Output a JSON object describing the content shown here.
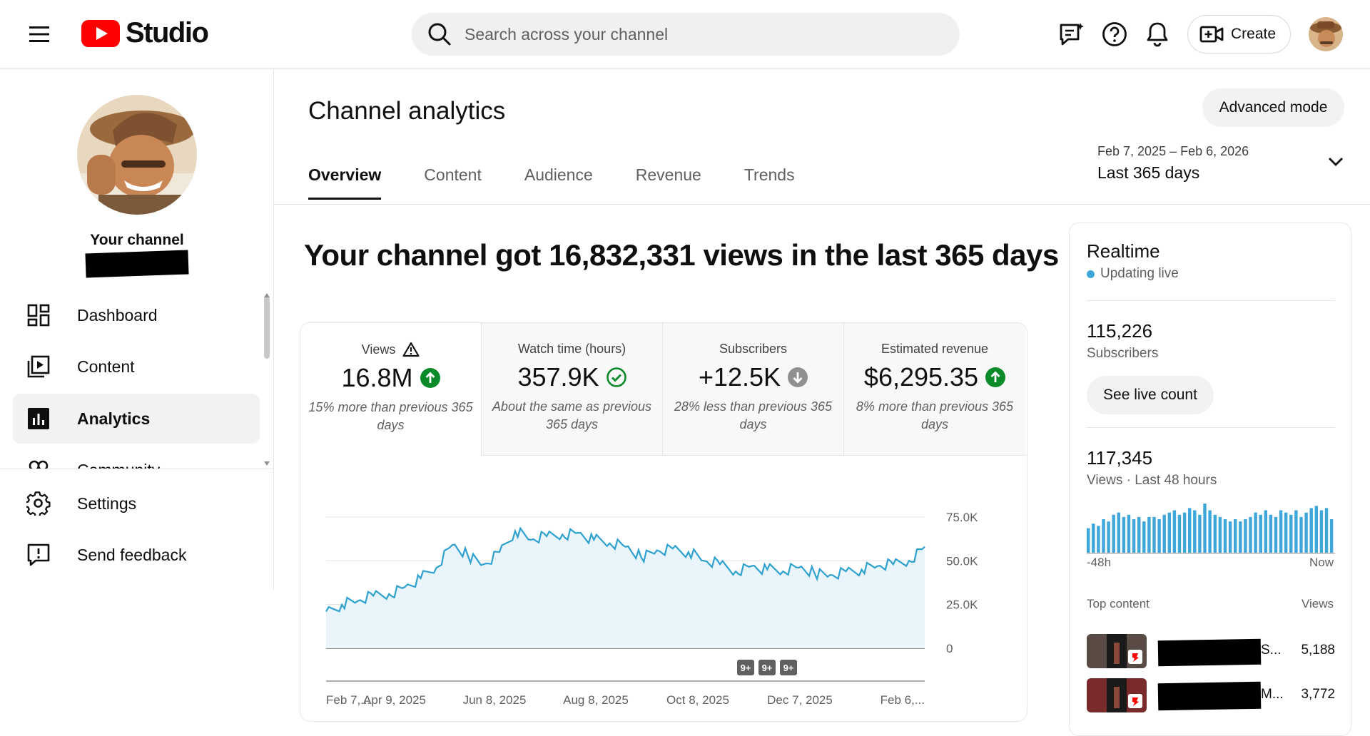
{
  "header": {
    "logo_text": "Studio",
    "search_placeholder": "Search across your channel",
    "create_label": "Create"
  },
  "sidebar": {
    "channel_label": "Your channel",
    "items": [
      {
        "label": "Dashboard"
      },
      {
        "label": "Content"
      },
      {
        "label": "Analytics"
      },
      {
        "label": "Community"
      },
      {
        "label": "Settings"
      },
      {
        "label": "Send feedback"
      }
    ]
  },
  "main": {
    "title": "Channel analytics",
    "advanced_mode": "Advanced mode",
    "tabs": [
      {
        "label": "Overview"
      },
      {
        "label": "Content"
      },
      {
        "label": "Audience"
      },
      {
        "label": "Revenue"
      },
      {
        "label": "Trends"
      }
    ],
    "date_range": {
      "dates": "Feb 7, 2025 – Feb 6, 2026",
      "label": "Last 365 days"
    },
    "headline": "Your channel got 16,832,331 views in the last 365 days",
    "metrics": [
      {
        "label": "Views",
        "value": "16.8M",
        "note": "15% more than previous 365 days",
        "trend": "up"
      },
      {
        "label": "Watch time (hours)",
        "value": "357.9K",
        "note": "About the same as previous 365 days",
        "trend": "same"
      },
      {
        "label": "Subscribers",
        "value": "+12.5K",
        "note": "28% less than previous 365 days",
        "trend": "down"
      },
      {
        "label": "Estimated revenue",
        "value": "$6,295.35",
        "note": "8% more than previous 365 days",
        "trend": "up"
      }
    ]
  },
  "chart_data": {
    "type": "area",
    "series": [
      {
        "values": [
          21000,
          25000,
          27000,
          30000,
          31000,
          35000,
          40000,
          46000,
          59000,
          53000,
          48000,
          55000,
          67000,
          62000,
          64000,
          65000,
          66000,
          62000,
          60000,
          58000,
          52000,
          56000,
          57000,
          55000,
          50000,
          48000,
          44000,
          47000,
          45000,
          44000,
          46000,
          43000,
          42000,
          44000,
          45000,
          47000,
          48000,
          50000,
          58000
        ]
      }
    ],
    "x_tick_labels": [
      "Feb 7,...",
      "Apr 9, 2025",
      "Jun 8, 2025",
      "Aug 8, 2025",
      "Oct 8, 2025",
      "Dec 7, 2025",
      "Feb 6,..."
    ],
    "y_tick_labels": [
      "75.0K",
      "50.0K",
      "25.0K",
      "0"
    ],
    "ylim": [
      0,
      75000
    ],
    "annotations": [
      "9+",
      "9+",
      "9+"
    ],
    "color": "#2ea1cf",
    "grid": true
  },
  "realtime": {
    "title": "Realtime",
    "status": "Updating live",
    "subscribers_value": "115,226",
    "subscribers_label": "Subscribers",
    "live_button": "See live count",
    "views_value": "117,345",
    "views_label": "Views · Last 48 hours",
    "axis_start": "-48h",
    "axis_end": "Now",
    "bars": [
      22,
      26,
      24,
      30,
      28,
      34,
      36,
      32,
      34,
      30,
      32,
      28,
      32,
      32,
      30,
      34,
      36,
      38,
      34,
      36,
      40,
      38,
      34,
      44,
      38,
      34,
      32,
      30,
      28,
      30,
      28,
      30,
      32,
      36,
      34,
      38,
      34,
      32,
      38,
      36,
      34,
      38,
      32,
      36,
      40,
      42,
      38,
      40,
      30
    ],
    "top_content_label": "Top content",
    "top_content_views_label": "Views",
    "top_content": [
      {
        "views": "5,188",
        "tail": "S..."
      },
      {
        "views": "3,772",
        "tail": "M..."
      }
    ]
  }
}
